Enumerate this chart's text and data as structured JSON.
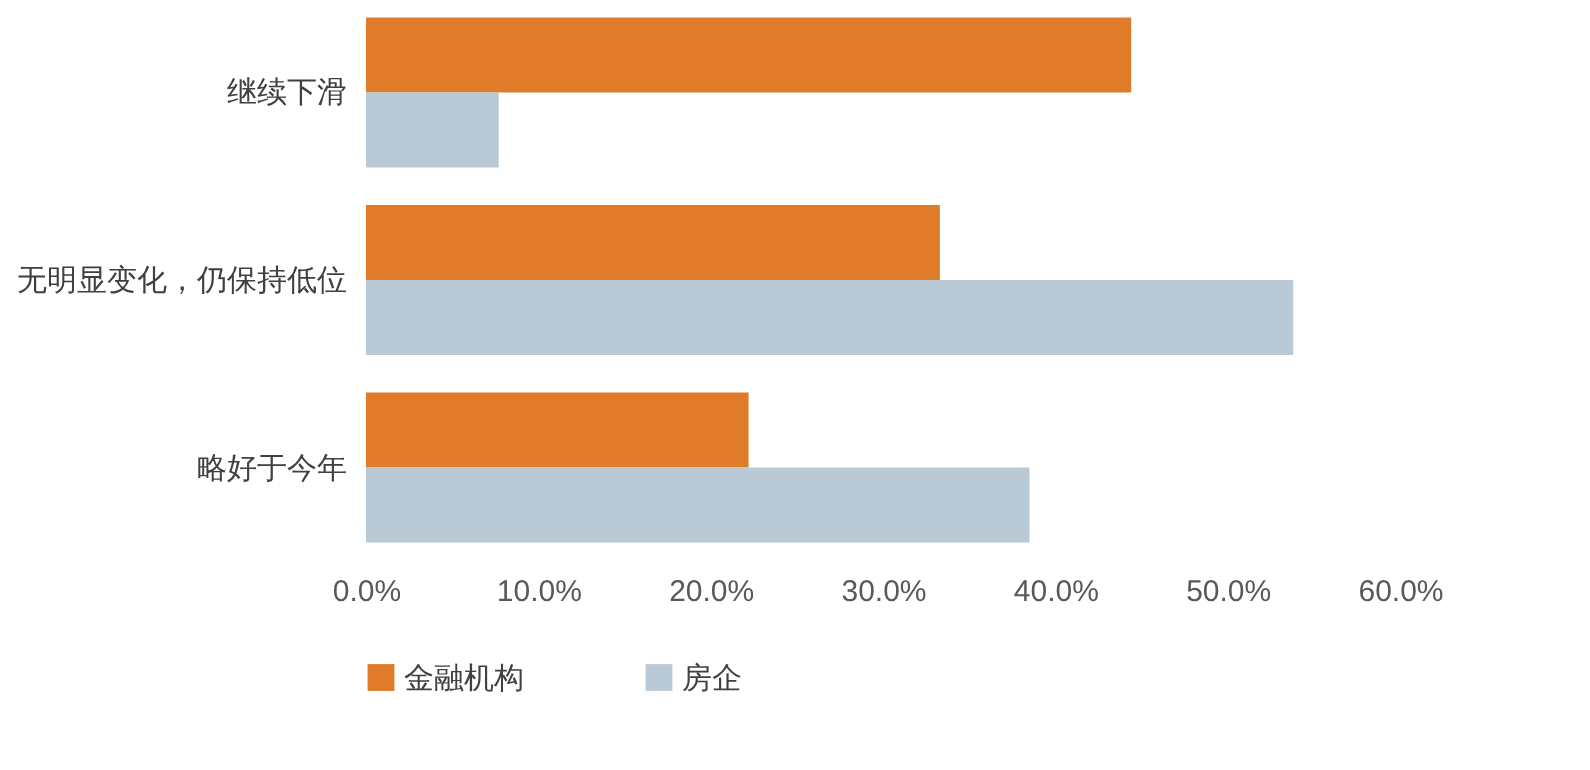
{
  "chart_data": {
    "type": "bar",
    "orientation": "horizontal",
    "categories": [
      "继续下滑",
      "无明显变化，仍保持低位",
      "略好于今年"
    ],
    "series": [
      {
        "name": "金融机构",
        "color": "#e07b2a",
        "values": [
          44.4,
          33.3,
          22.2
        ]
      },
      {
        "name": "房企",
        "color": "#b9cad6",
        "values": [
          7.7,
          53.8,
          38.5
        ]
      }
    ],
    "xlim": [
      0,
      60
    ],
    "xticks": [
      {
        "value": 0,
        "label": "0.0%"
      },
      {
        "value": 10,
        "label": "10.0%"
      },
      {
        "value": 20,
        "label": "20.0%"
      },
      {
        "value": 30,
        "label": "30.0%"
      },
      {
        "value": 40,
        "label": "40.0%"
      },
      {
        "value": 50,
        "label": "50.0%"
      },
      {
        "value": 60,
        "label": "60.0%"
      }
    ],
    "legend": "bottom"
  }
}
